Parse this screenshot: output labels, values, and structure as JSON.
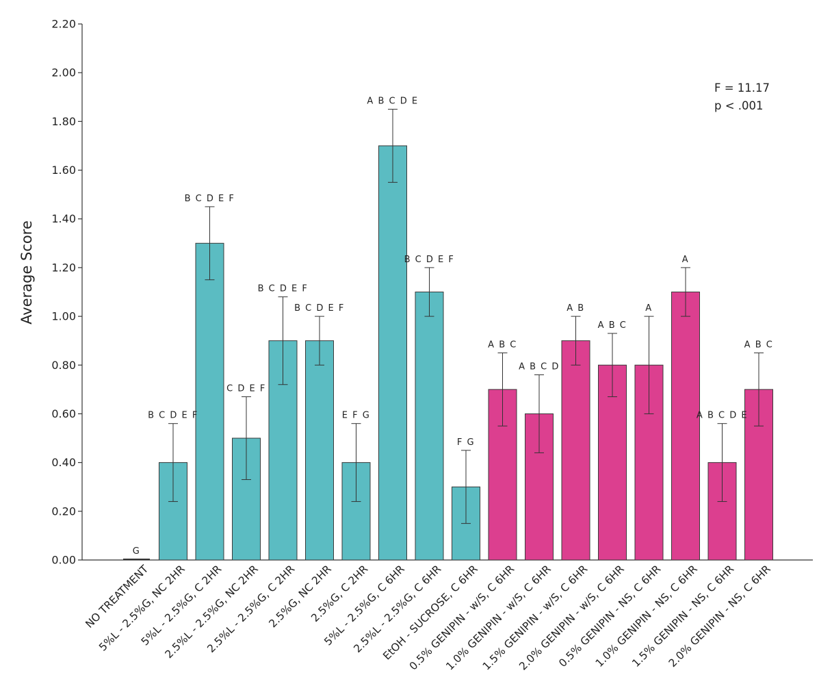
{
  "chart_data": {
    "type": "bar",
    "title": "",
    "xlabel": "",
    "ylabel": "Average Score",
    "ylim": [
      0,
      2.2
    ],
    "yticks": [
      "0.00",
      "0.20",
      "0.40",
      "0.60",
      "0.80",
      "1.00",
      "1.20",
      "1.40",
      "1.60",
      "1.80",
      "2.00",
      "2.20"
    ],
    "annotations": [
      "F = 11.17",
      "p < .001"
    ],
    "colors": {
      "group1": "#5bbcc2",
      "group2": "#dc3f8f",
      "axis": "#333333"
    },
    "categories": [
      "NO TREATMENT",
      "5%L - 2.5%G, NC 2HR",
      "5%L - 2.5%G, C 2HR",
      "2.5%L - 2.5%G, NC 2HR",
      "2.5%L - 2.5%G, C 2HR",
      "2.5%G, NC 2HR",
      "2.5%G, C 2HR",
      "5%L - 2.5%G, C 6HR",
      "2.5%L - 2.5%G, C 6HR",
      "EtOH - SUCROSE, C 6HR",
      "0.5% GENIPIN - w/S, C 6HR",
      "1.0% GENIPIN - w/S, C 6HR",
      "1.5% GENIPIN - w/S, C 6HR",
      "2.0% GENIPIN - w/S, C 6HR",
      "0.5% GENIPIN - NS, C 6HR",
      "1.0% GENIPIN - NS, C 6HR",
      "1.5% GENIPIN - NS, C 6HR",
      "2.0% GENIPIN - NS, C 6HR"
    ],
    "values": [
      0.0,
      0.4,
      1.3,
      0.5,
      0.9,
      0.9,
      0.4,
      1.7,
      1.1,
      0.3,
      0.7,
      0.6,
      0.9,
      0.8,
      0.8,
      1.1,
      0.4,
      0.7
    ],
    "error_low": [
      0.0,
      0.24,
      1.15,
      0.33,
      0.72,
      0.8,
      0.24,
      1.55,
      1.0,
      0.15,
      0.55,
      0.44,
      0.8,
      0.67,
      0.6,
      1.0,
      0.24,
      0.55
    ],
    "error_high": [
      0.0,
      0.56,
      1.45,
      0.67,
      1.08,
      1.0,
      0.56,
      1.85,
      1.2,
      0.45,
      0.85,
      0.76,
      1.0,
      0.93,
      1.0,
      1.2,
      0.56,
      0.85
    ],
    "groups": [
      "group1",
      "group1",
      "group1",
      "group1",
      "group1",
      "group1",
      "group1",
      "group1",
      "group1",
      "group1",
      "group2",
      "group2",
      "group2",
      "group2",
      "group2",
      "group2",
      "group2",
      "group2"
    ],
    "significance": [
      "G",
      "B C D E F",
      "B C D E F",
      "C D E F",
      "B C D E F",
      "B C D E F",
      "E F G",
      "A B C D E",
      "B C D E F",
      "F G",
      "A B C",
      "A B C D",
      "A B",
      "A B C",
      "A",
      "A",
      "A B C D E",
      "A B C"
    ]
  }
}
